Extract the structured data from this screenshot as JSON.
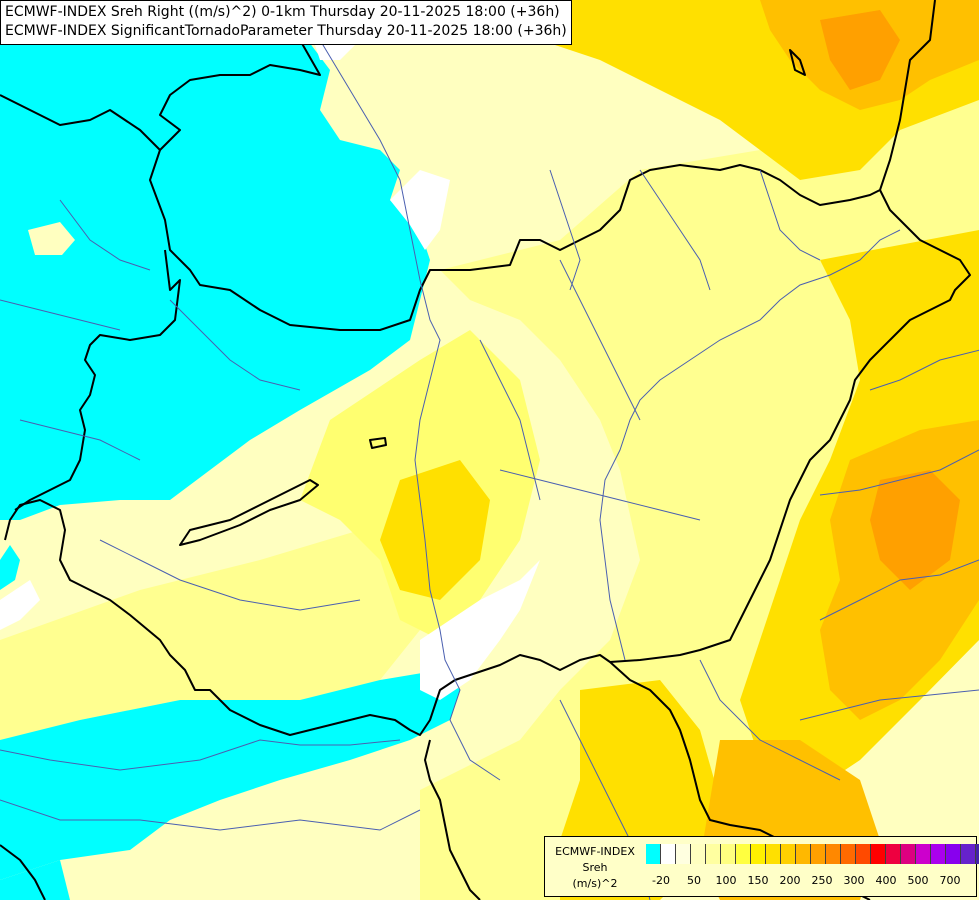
{
  "header": {
    "line1": "ECMWF-INDEX Sreh Right ((m/s)^2) 0-1km Thursday 20-11-2025 18:00 (+36h)",
    "line2": "ECMWF-INDEX SignificantTornadoParameter Thursday 20-11-2025 18:00 (+36h)"
  },
  "legend": {
    "source": "ECMWF-INDEX",
    "parameter": "Sreh",
    "unit": "(m/s)^2",
    "ticks": [
      "-20",
      "50",
      "100",
      "150",
      "200",
      "250",
      "300",
      "400",
      "500",
      "700"
    ],
    "colors": [
      "#00ffff",
      "#ffffff",
      "#ffffe0",
      "#ffffc0",
      "#ffffa0",
      "#ffff80",
      "#ffff40",
      "#fff000",
      "#ffe000",
      "#ffd000",
      "#ffb800",
      "#ffa000",
      "#ff8800",
      "#ff6a00",
      "#ff4a00",
      "#ff0000",
      "#ee0040",
      "#dd0080",
      "#cc00cc",
      "#aa00ee",
      "#8800ee",
      "#6622cc",
      "#4422aa",
      "#000080"
    ]
  },
  "colors": {
    "cyan_low": "#00ffff",
    "white": "#ffffff",
    "pale_yellow": "#ffffc0",
    "light_yellow": "#ffff90",
    "yellow": "#ffff40",
    "gold": "#ffe000",
    "orange": "#ffc000",
    "dark_orange": "#ffa000",
    "border": "#000000",
    "river": "#4a5fb0"
  }
}
